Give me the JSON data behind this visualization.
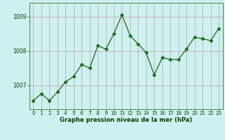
{
  "x": [
    0,
    1,
    2,
    3,
    4,
    5,
    6,
    7,
    8,
    9,
    10,
    11,
    12,
    13,
    14,
    15,
    16,
    17,
    18,
    19,
    20,
    21,
    22,
    23
  ],
  "y": [
    1006.55,
    1006.75,
    1006.55,
    1006.8,
    1007.1,
    1007.25,
    1007.6,
    1007.5,
    1008.15,
    1008.05,
    1008.5,
    1009.05,
    1008.45,
    1008.2,
    1007.95,
    1007.3,
    1007.8,
    1007.75,
    1007.75,
    1008.05,
    1008.4,
    1008.35,
    1008.3,
    1008.65
  ],
  "line_color": "#1a6b1a",
  "marker": "D",
  "marker_size": 2.5,
  "bg_color": "#cef0f0",
  "grid_color_major": "#c0a0a0",
  "grid_color_minor": "#d8c8c8",
  "xlabel": "Graphe pression niveau de la mer (hPa)",
  "xlabel_color": "#004400",
  "tick_color": "#004400",
  "yticks": [
    1007,
    1008,
    1009
  ],
  "ylim": [
    1006.3,
    1009.4
  ],
  "xlim": [
    -0.5,
    23.5
  ],
  "xticks": [
    0,
    1,
    2,
    3,
    4,
    5,
    6,
    7,
    8,
    9,
    10,
    11,
    12,
    13,
    14,
    15,
    16,
    17,
    18,
    19,
    20,
    21,
    22,
    23
  ],
  "spine_color": "#448844"
}
